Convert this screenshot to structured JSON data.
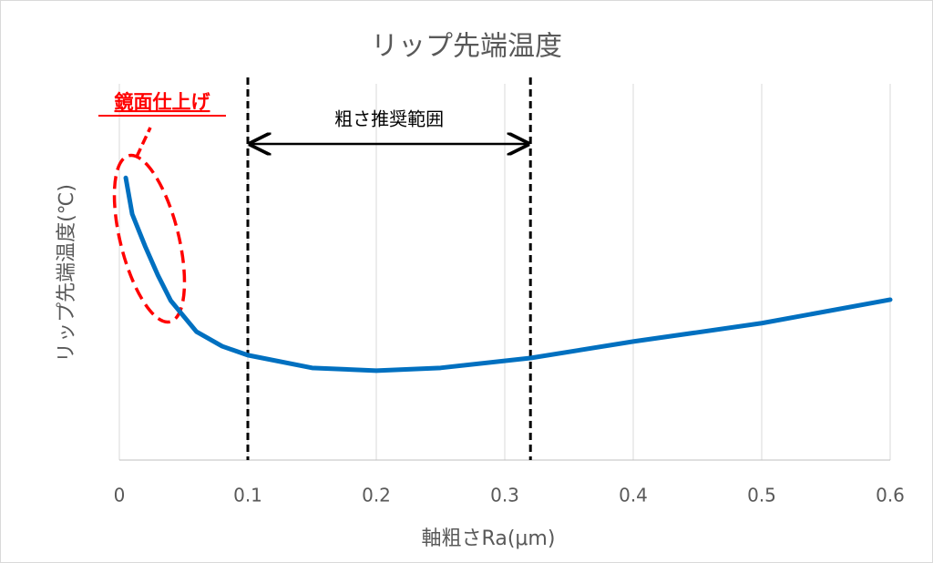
{
  "chart_data": {
    "type": "line",
    "title": "リップ先端温度",
    "x_label": "軸粗さRa(μm)",
    "y_label": "リップ先端温度(℃)",
    "x": [
      0.005,
      0.01,
      0.02,
      0.03,
      0.04,
      0.06,
      0.08,
      0.1,
      0.15,
      0.2,
      0.25,
      0.32,
      0.4,
      0.5,
      0.6
    ],
    "series": [
      {
        "name": "リップ先端温度",
        "color": "#0070c0",
        "values": [
          6.0,
          5.23,
          4.55,
          3.93,
          3.39,
          2.73,
          2.42,
          2.23,
          1.96,
          1.9,
          1.96,
          2.17,
          2.52,
          2.91,
          3.41
        ]
      }
    ],
    "xlim": [
      0,
      0.6
    ],
    "xticks": [
      0,
      0.1,
      0.2,
      0.3,
      0.4,
      0.5,
      0.6
    ],
    "ylim": [
      0,
      8
    ],
    "grid": true,
    "annotations": [
      {
        "text": "粗さ推奨範囲",
        "x": [
          0.1,
          0.32
        ]
      },
      {
        "text": "鏡面仕上げ"
      }
    ]
  }
}
